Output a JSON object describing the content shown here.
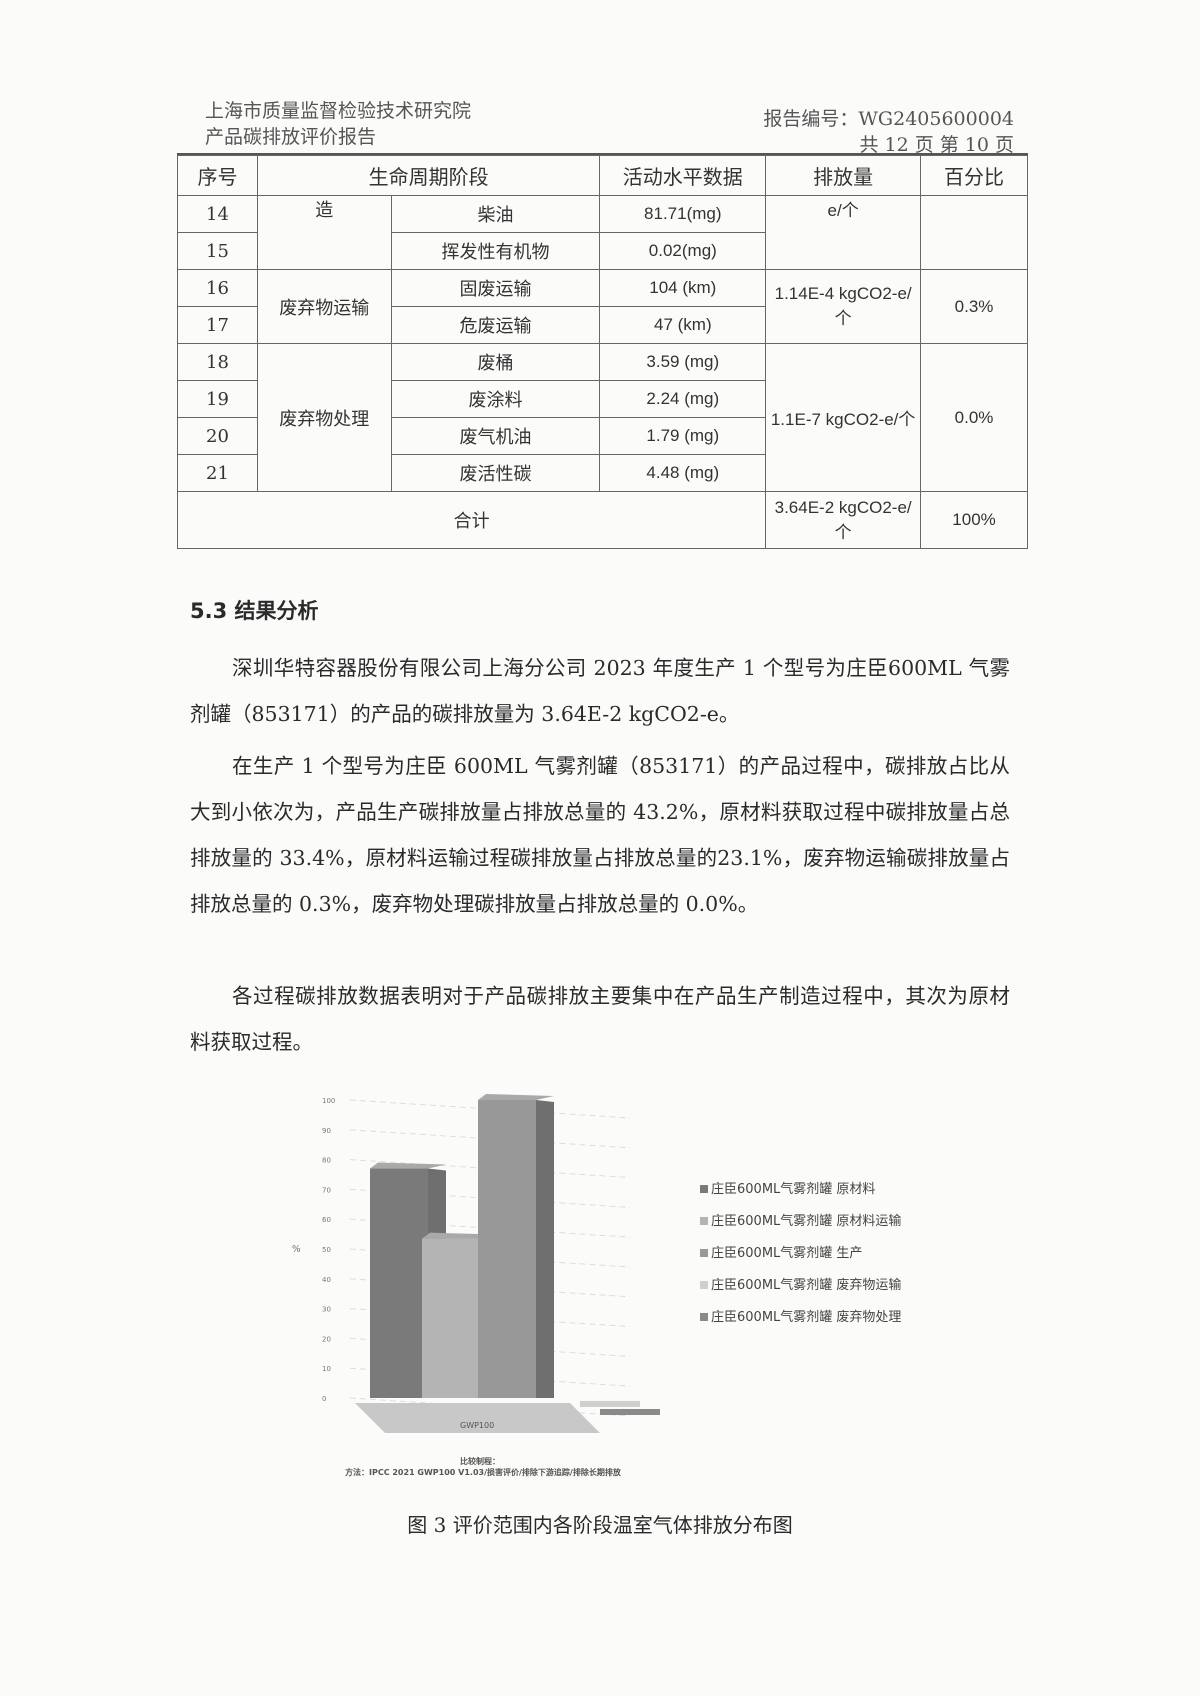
{
  "header": {
    "org": "上海市质量监督检验技术研究院",
    "report_type": "产品碳排放评价报告",
    "report_no": "报告编号：WG2405600004",
    "page_info": "共 12 页 第 10 页"
  },
  "table": {
    "headers": [
      "序号",
      "生命周期阶段",
      "活动水平数据",
      "排放量",
      "百分比"
    ],
    "groups": [
      {
        "stage": "造",
        "emission": "e/个",
        "percent": "",
        "rows": [
          {
            "no": "14",
            "item": "柴油",
            "activity": "81.71(mg)"
          },
          {
            "no": "15",
            "item": "挥发性有机物",
            "activity": "0.02(mg)"
          }
        ]
      },
      {
        "stage": "废弃物运输",
        "emission": "1.14E-4 kgCO2-e/个",
        "percent": "0.3%",
        "rows": [
          {
            "no": "16",
            "item": "固废运输",
            "activity": "104 (km)"
          },
          {
            "no": "17",
            "item": "危废运输",
            "activity": "47 (km)"
          }
        ]
      },
      {
        "stage": "废弃物处理",
        "emission": "1.1E-7 kgCO2-e/个",
        "percent": "0.0%",
        "rows": [
          {
            "no": "18",
            "item": "废桶",
            "activity": "3.59 (mg)"
          },
          {
            "no": "19",
            "item": "废涂料",
            "activity": "2.24 (mg)"
          },
          {
            "no": "20",
            "item": "废气机油",
            "activity": "1.79 (mg)"
          },
          {
            "no": "21",
            "item": "废活性碳",
            "activity": "4.48 (mg)"
          }
        ]
      }
    ],
    "total": {
      "label": "合计",
      "emission": "3.64E-2 kgCO2-e/个",
      "percent": "100%"
    }
  },
  "section": {
    "title": "5.3 结果分析",
    "paragraphs": [
      "深圳华特容器股份有限公司上海分公司 2023 年度生产 1 个型号为庄臣600ML 气雾剂罐（853171）的产品的碳排放量为 3.64E-2 kgCO2-e。",
      "在生产 1 个型号为庄臣 600ML 气雾剂罐（853171）的产品过程中，碳排放占比从大到小依次为，产品生产碳排放量占排放总量的 43.2%，原材料获取过程中碳排放量占总排放量的 33.4%，原材料运输过程碳排放量占排放总量的23.1%，废弃物运输碳排放量占排放总量的 0.3%，废弃物处理碳排放量占排放总量的 0.0%。",
      "各过程碳排放数据表明对于产品碳排放主要集中在产品生产制造过程中，其次为原材料获取过程。"
    ]
  },
  "chart_data": {
    "type": "bar",
    "categories": [
      "GWP100"
    ],
    "ylabel": "%",
    "ylim": [
      0,
      100
    ],
    "yticks": [
      0,
      10,
      20,
      30,
      40,
      50,
      60,
      70,
      80,
      90,
      100
    ],
    "grid": true,
    "legend_position": "right",
    "series": [
      {
        "name": "庄臣600ML气雾剂罐  原材料",
        "values": [
          77
        ],
        "color": "#7a7a7a"
      },
      {
        "name": "庄臣600ML气雾剂罐  原材料运输",
        "values": [
          53.5
        ],
        "color": "#b4b4b4"
      },
      {
        "name": "庄臣600ML气雾剂罐  生产",
        "values": [
          100
        ],
        "color": "#989898"
      },
      {
        "name": "庄臣600ML气雾剂罐  废弃物运输",
        "values": [
          0.7
        ],
        "color": "#cfcfcf"
      },
      {
        "name": "庄臣600ML气雾剂罐  废弃物处理",
        "values": [
          0
        ],
        "color": "#8a8a8a"
      }
    ],
    "footnote_1": "比较制程：",
    "footnote_2": "方法：IPCC 2021 GWP100 V1.03/损害评价/排除下游追踪/排除长期排放"
  },
  "figure_caption": "图 3 评价范围内各阶段温室气体排放分布图"
}
